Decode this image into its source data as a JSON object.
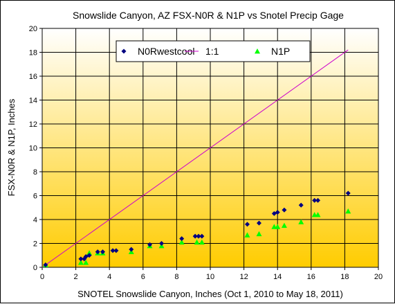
{
  "chart_data": {
    "type": "scatter",
    "title": "Snowslide Canyon, AZ FSX-N0R & N1P  vs Snotel Precip Gage",
    "xlabel": "SNOTEL Snowslide Canyon, Inches (Oct 1, 2010 to May 18, 2011)",
    "ylabel": "FSX-N0R & N1P, Inches",
    "xlim": [
      0,
      20
    ],
    "ylim": [
      0,
      20
    ],
    "x_ticks": [
      0,
      2,
      4,
      6,
      8,
      10,
      12,
      14,
      16,
      18,
      20
    ],
    "y_ticks": [
      0,
      2,
      4,
      6,
      8,
      10,
      12,
      14,
      16,
      18,
      20
    ],
    "grid": true,
    "legend_position": "top-center",
    "background_gradient": [
      "#ffffff",
      "#ffcc00"
    ],
    "series": [
      {
        "name": "N0Rwestcool",
        "marker": "diamond",
        "color": "#000080",
        "points": [
          [
            0.2,
            0.2
          ],
          [
            2.3,
            0.7
          ],
          [
            2.5,
            0.7
          ],
          [
            2.6,
            0.9
          ],
          [
            2.8,
            1.0
          ],
          [
            3.3,
            1.3
          ],
          [
            3.6,
            1.3
          ],
          [
            4.2,
            1.4
          ],
          [
            4.4,
            1.4
          ],
          [
            5.3,
            1.5
          ],
          [
            6.4,
            1.9
          ],
          [
            7.1,
            2.0
          ],
          [
            8.3,
            2.4
          ],
          [
            9.1,
            2.6
          ],
          [
            9.3,
            2.6
          ],
          [
            9.5,
            2.6
          ],
          [
            12.2,
            3.6
          ],
          [
            12.9,
            3.7
          ],
          [
            13.8,
            4.5
          ],
          [
            14.0,
            4.6
          ],
          [
            14.4,
            4.8
          ],
          [
            15.4,
            5.2
          ],
          [
            16.2,
            5.6
          ],
          [
            16.4,
            5.6
          ],
          [
            18.2,
            6.2
          ]
        ]
      },
      {
        "name": "1:1",
        "type": "line",
        "color": "#cc00cc",
        "points": [
          [
            0,
            0
          ],
          [
            18.2,
            18.2
          ]
        ]
      },
      {
        "name": "N1P",
        "marker": "triangle",
        "color": "#00ff00",
        "points": [
          [
            0.2,
            0.2
          ],
          [
            2.3,
            0.4
          ],
          [
            2.6,
            0.4
          ],
          [
            2.8,
            1.2
          ],
          [
            3.3,
            1.2
          ],
          [
            3.6,
            1.2
          ],
          [
            5.3,
            1.3
          ],
          [
            6.4,
            1.8
          ],
          [
            7.1,
            1.8
          ],
          [
            8.3,
            2.1
          ],
          [
            9.2,
            2.1
          ],
          [
            9.5,
            2.1
          ],
          [
            12.2,
            2.7
          ],
          [
            12.9,
            2.8
          ],
          [
            13.8,
            3.4
          ],
          [
            14.0,
            3.4
          ],
          [
            14.4,
            3.5
          ],
          [
            15.4,
            3.8
          ],
          [
            16.2,
            4.4
          ],
          [
            16.4,
            4.4
          ],
          [
            18.2,
            4.7
          ]
        ]
      }
    ]
  }
}
